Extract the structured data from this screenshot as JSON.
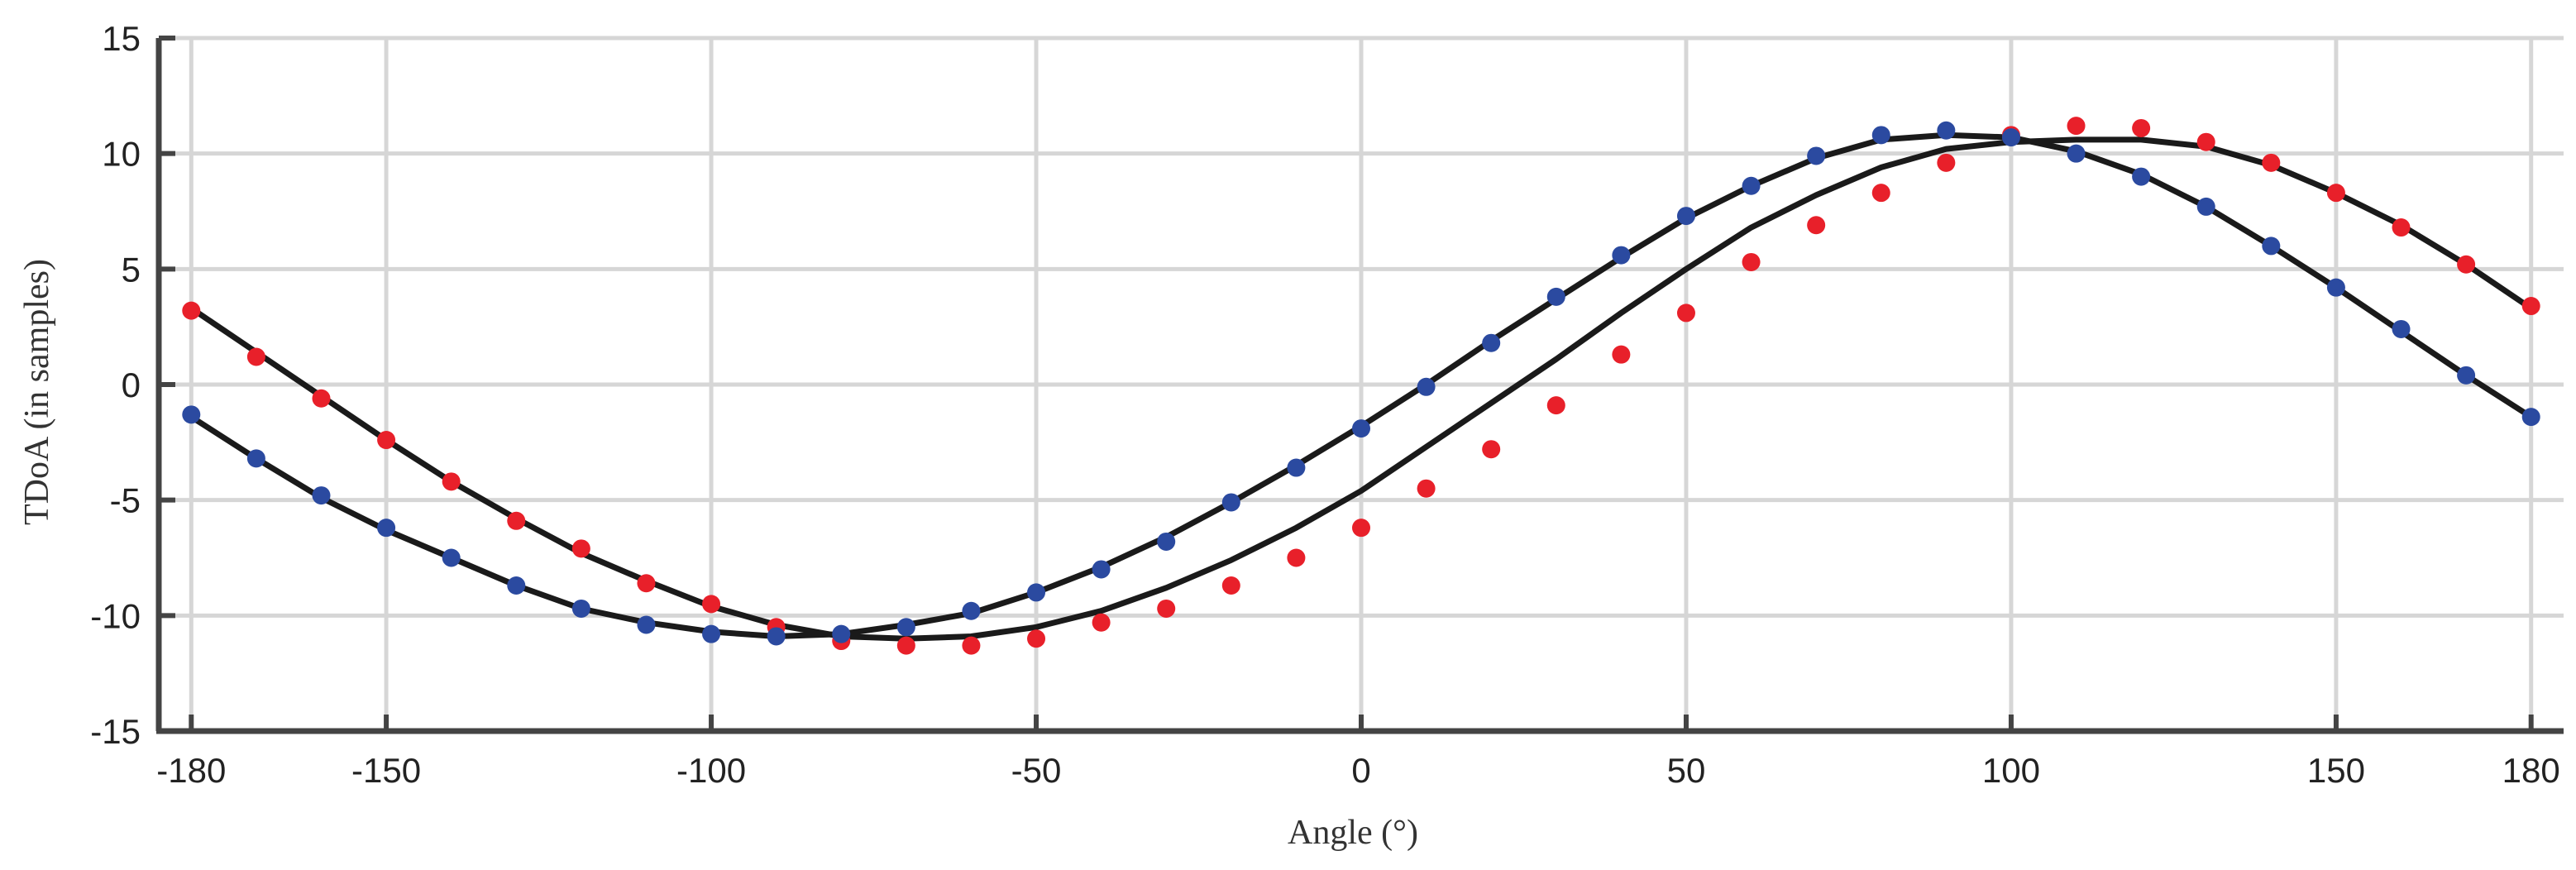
{
  "chart_data": {
    "type": "scatter",
    "title": "",
    "xlabel": "Angle (°)",
    "ylabel": "TDoA (in samples)",
    "xlim": [
      -185,
      185
    ],
    "ylim": [
      -15,
      15
    ],
    "xticks": [
      -180,
      -150,
      -100,
      -50,
      0,
      50,
      100,
      150,
      180
    ],
    "yticks": [
      -15,
      -10,
      -5,
      0,
      5,
      10,
      15
    ],
    "grid": true,
    "legend": "none",
    "series": [
      {
        "color": "#e8202a",
        "x": [
          -180,
          -170,
          -160,
          -150,
          -140,
          -130,
          -120,
          -110,
          -100,
          -90,
          -80,
          -70,
          -60,
          -50,
          -40,
          -30,
          -20,
          -10,
          0,
          10,
          20,
          30,
          40,
          50,
          60,
          70,
          80,
          90,
          100,
          110,
          120,
          130,
          140,
          150,
          160,
          170,
          180
        ],
        "y": [
          3.2,
          1.2,
          -0.6,
          -2.4,
          -4.2,
          -5.9,
          -7.1,
          -8.6,
          -9.5,
          -10.5,
          -11.1,
          -11.3,
          -11.3,
          -11.0,
          -10.3,
          -9.7,
          -8.7,
          -7.5,
          -6.2,
          -4.5,
          -2.8,
          -0.9,
          1.3,
          3.1,
          5.3,
          6.9,
          8.3,
          9.6,
          10.8,
          11.2,
          11.1,
          10.5,
          9.6,
          8.3,
          6.8,
          5.2,
          3.4
        ],
        "fit_y": [
          3.3,
          1.4,
          -0.5,
          -2.4,
          -4.2,
          -5.8,
          -7.3,
          -8.5,
          -9.6,
          -10.4,
          -10.9,
          -11.0,
          -10.9,
          -10.5,
          -9.8,
          -8.8,
          -7.6,
          -6.2,
          -4.6,
          -2.7,
          -0.8,
          1.1,
          3.1,
          5.0,
          6.8,
          8.2,
          9.4,
          10.2,
          10.5,
          10.6,
          10.6,
          10.3,
          9.5,
          8.3,
          6.9,
          5.2,
          3.3
        ]
      },
      {
        "color": "#2b4aa0",
        "x": [
          -180,
          -170,
          -160,
          -150,
          -140,
          -130,
          -120,
          -110,
          -100,
          -90,
          -80,
          -70,
          -60,
          -50,
          -40,
          -30,
          -20,
          -10,
          0,
          10,
          20,
          30,
          40,
          50,
          60,
          70,
          80,
          90,
          100,
          110,
          120,
          130,
          140,
          150,
          160,
          170,
          180
        ],
        "y": [
          -1.3,
          -3.2,
          -4.8,
          -6.2,
          -7.5,
          -8.7,
          -9.7,
          -10.4,
          -10.8,
          -10.9,
          -10.8,
          -10.5,
          -9.8,
          -9.0,
          -8.0,
          -6.8,
          -5.1,
          -3.6,
          -1.9,
          -0.1,
          1.8,
          3.8,
          5.6,
          7.3,
          8.6,
          9.9,
          10.8,
          11.0,
          10.7,
          10.0,
          9.0,
          7.7,
          6.0,
          4.2,
          2.4,
          0.4,
          -1.4
        ],
        "fit_y": [
          -1.4,
          -3.2,
          -4.9,
          -6.3,
          -7.5,
          -8.7,
          -9.7,
          -10.3,
          -10.7,
          -10.9,
          -10.8,
          -10.4,
          -9.9,
          -9.0,
          -7.9,
          -6.6,
          -5.1,
          -3.5,
          -1.8,
          0.0,
          1.9,
          3.7,
          5.5,
          7.2,
          8.6,
          9.8,
          10.6,
          10.8,
          10.7,
          10.1,
          9.1,
          7.7,
          6.0,
          4.2,
          2.3,
          0.4,
          -1.4
        ]
      }
    ]
  }
}
